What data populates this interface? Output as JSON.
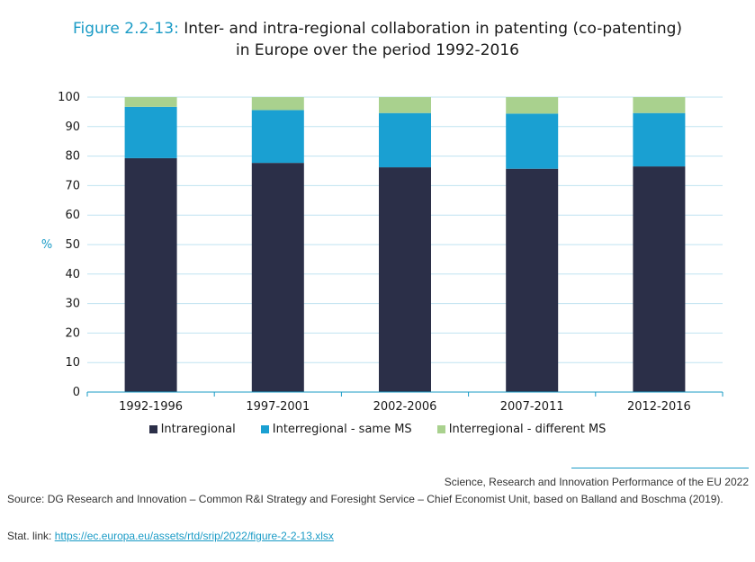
{
  "figure": {
    "label": "Figure 2.2-13:",
    "title_line1": "Inter- and intra-regional collaboration in patenting (co-patenting)",
    "title_line2": "in Europe over the period 1992-2016"
  },
  "chart_data": {
    "type": "bar",
    "stacked": true,
    "categories": [
      "1992-1996",
      "1997-2001",
      "2002-2006",
      "2007-2011",
      "2012-2016"
    ],
    "series": [
      {
        "name": "Intraregional",
        "values": [
          79.3,
          77.7,
          76.2,
          75.7,
          76.5
        ],
        "color": "#2b2f48"
      },
      {
        "name": "Interregional - same MS",
        "values": [
          17.4,
          17.9,
          18.4,
          18.7,
          18.1
        ],
        "color": "#1aa0d2"
      },
      {
        "name": "Interregional - different MS",
        "values": [
          3.3,
          4.4,
          5.4,
          5.6,
          5.4
        ],
        "color": "#a9d18e"
      }
    ],
    "ylabel": "%",
    "ylim": [
      0,
      100
    ],
    "yticks": [
      0,
      10,
      20,
      30,
      40,
      50,
      60,
      70,
      80,
      90,
      100
    ],
    "grid": true,
    "legend_position": "bottom"
  },
  "footer": {
    "publication": "Science, Research and Innovation Performance of the EU 2022",
    "source": "Source: DG Research and Innovation – Common R&I Strategy and Foresight Service – Chief Economist Unit, based on Balland and Boschma (2019).",
    "stat_link_label": "Stat. link:",
    "stat_link_url": "https://ec.europa.eu/assets/rtd/srip/2022/figure-2-2-13.xlsx"
  },
  "colors": {
    "accent": "#1a9bc6",
    "grid": "#bfe3f1",
    "axis": "#1a9bc6"
  }
}
